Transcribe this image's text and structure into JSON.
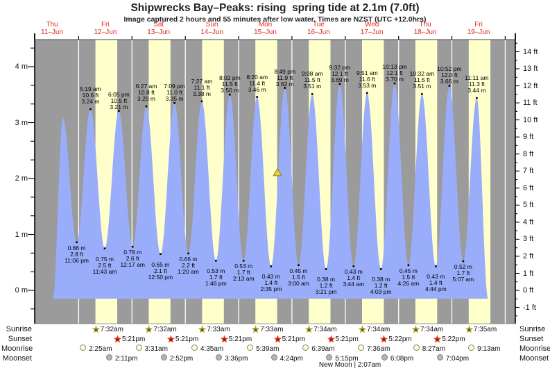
{
  "title": "Shipwrecks Bay–Peaks: rising  spring tide at 2.1m (7.0ft)",
  "subtitle": "Image captured 2 hours and 55 minutes after low water. Times are NZST (UTC +12.0hrs)",
  "day_labels": [
    {
      "name": "Thu",
      "date": "11–Jun"
    },
    {
      "name": "Fri",
      "date": "12–Jun"
    },
    {
      "name": "Sat",
      "date": "13–Jun"
    },
    {
      "name": "Sun",
      "date": "14–Jun"
    },
    {
      "name": "Mon",
      "date": "15–Jun"
    },
    {
      "name": "Tue",
      "date": "16–Jun"
    },
    {
      "name": "Wed",
      "date": "17–Jun"
    },
    {
      "name": "Thu",
      "date": "18–Jun"
    },
    {
      "name": "Fri",
      "date": "19–Jun"
    }
  ],
  "left_axis_labels": [
    "4 m",
    "3 m",
    "2 m",
    "1 m",
    "0 m"
  ],
  "right_axis_labels": [
    "14 ft",
    "13 ft",
    "12 ft",
    "11 ft",
    "10 ft",
    "9 ft",
    "8 ft",
    "7 ft",
    "6 ft",
    "5 ft",
    "4 ft",
    "3 ft",
    "2 ft",
    "1 ft",
    "0 ft",
    "-1 ft"
  ],
  "chart_data": {
    "type": "area",
    "x_axis": "time, Thu 11-Jun through Fri 19-Jun (NZST)",
    "y_left_unit": "m",
    "y_left_ticks": [
      0,
      1,
      2,
      3,
      4
    ],
    "y_right_unit": "ft",
    "y_right_ticks": [
      -1,
      0,
      1,
      2,
      3,
      4,
      5,
      6,
      7,
      8,
      9,
      10,
      11,
      12,
      13,
      14
    ],
    "shading": "yellow bands = daylight between sunrise and sunset, gray = night",
    "high_tides": [
      {
        "day": 1,
        "time": "5:19 am",
        "ft": 10.6,
        "m": 3.24
      },
      {
        "day": 1,
        "time": "6:05 pm",
        "ft": 10.5,
        "m": 3.21
      },
      {
        "day": 2,
        "time": "6:27 am",
        "ft": 10.8,
        "m": 3.29
      },
      {
        "day": 2,
        "time": "7:09 pm",
        "ft": 11.0,
        "m": 3.35
      },
      {
        "day": 3,
        "time": "7:27 am",
        "ft": 11.1,
        "m": 3.38
      },
      {
        "day": 3,
        "time": "8:02 pm",
        "ft": 11.5,
        "m": 3.5
      },
      {
        "day": 4,
        "time": "8:20 am",
        "ft": 11.4,
        "m": 3.46
      },
      {
        "day": 4,
        "time": "8:49 pm",
        "ft": 11.9,
        "m": 3.62
      },
      {
        "day": 5,
        "time": "9:08 am",
        "ft": 11.5,
        "m": 3.51
      },
      {
        "day": 5,
        "time": "9:32 pm",
        "ft": 12.1,
        "m": 3.69
      },
      {
        "day": 6,
        "time": "9:51 am",
        "ft": 11.6,
        "m": 3.53
      },
      {
        "day": 6,
        "time": "10:13 pm",
        "ft": 12.1,
        "m": 3.7
      },
      {
        "day": 7,
        "time": "10:32 am",
        "ft": 11.5,
        "m": 3.51
      },
      {
        "day": 7,
        "time": "10:52 pm",
        "ft": 12.0,
        "m": 3.66
      },
      {
        "day": 8,
        "time": "11:11 am",
        "ft": 11.3,
        "m": 3.44
      }
    ],
    "low_tides": [
      {
        "day": 0,
        "time": "11:06 pm",
        "ft": 2.8,
        "m": 0.86
      },
      {
        "day": 1,
        "time": "11:43 am",
        "ft": 2.5,
        "m": 0.75
      },
      {
        "day": 2,
        "time": "12:17 am",
        "ft": 2.6,
        "m": 0.78
      },
      {
        "day": 2,
        "time": "12:50 pm",
        "ft": 2.1,
        "m": 0.65
      },
      {
        "day": 3,
        "time": "1:20 am",
        "ft": 2.2,
        "m": 0.66
      },
      {
        "day": 3,
        "time": "1:46 pm",
        "ft": 1.7,
        "m": 0.53
      },
      {
        "day": 4,
        "time": "2:13 am",
        "ft": 1.7,
        "m": 0.53
      },
      {
        "day": 4,
        "time": "2:35 pm",
        "ft": 1.4,
        "m": 0.43
      },
      {
        "day": 5,
        "time": "3:00 am",
        "ft": 1.5,
        "m": 0.45
      },
      {
        "day": 5,
        "time": "3:21 pm",
        "ft": 1.2,
        "m": 0.38
      },
      {
        "day": 6,
        "time": "3:44 am",
        "ft": 1.4,
        "m": 0.43
      },
      {
        "day": 6,
        "time": "4:03 pm",
        "ft": 1.2,
        "m": 0.38
      },
      {
        "day": 7,
        "time": "4:26 am",
        "ft": 1.5,
        "m": 0.45
      },
      {
        "day": 7,
        "time": "4:44 pm",
        "ft": 1.4,
        "m": 0.43
      },
      {
        "day": 8,
        "time": "5:07 am",
        "ft": 1.7,
        "m": 0.52
      }
    ],
    "unlabeled_first_peak": {
      "t_hours": 16.9,
      "m": 3.08
    },
    "current_tide_marker": {
      "m": 2.1,
      "t_hours": 113.5
    }
  },
  "astro": {
    "row_labels": [
      "Sunrise",
      "Sunset",
      "Moonrise",
      "Moonset"
    ],
    "sunrise": [
      {
        "day": 1,
        "time": "7:32am"
      },
      {
        "day": 2,
        "time": "7:32am"
      },
      {
        "day": 3,
        "time": "7:33am"
      },
      {
        "day": 4,
        "time": "7:33am"
      },
      {
        "day": 5,
        "time": "7:34am"
      },
      {
        "day": 6,
        "time": "7:34am"
      },
      {
        "day": 7,
        "time": "7:34am"
      },
      {
        "day": 8,
        "time": "7:35am"
      }
    ],
    "sunset": [
      {
        "day": 1,
        "time": "5:21pm"
      },
      {
        "day": 2,
        "time": "5:21pm"
      },
      {
        "day": 3,
        "time": "5:21pm"
      },
      {
        "day": 4,
        "time": "5:21pm"
      },
      {
        "day": 5,
        "time": "5:21pm"
      },
      {
        "day": 6,
        "time": "5:22pm"
      },
      {
        "day": 7,
        "time": "5:22pm"
      }
    ],
    "moonrise": [
      {
        "day": 1,
        "time": "2:25am"
      },
      {
        "day": 2,
        "time": "3:31am"
      },
      {
        "day": 3,
        "time": "4:35am"
      },
      {
        "day": 4,
        "time": "5:39am"
      },
      {
        "day": 5,
        "time": "6:39am"
      },
      {
        "day": 6,
        "time": "7:36am"
      },
      {
        "day": 7,
        "time": "8:27am"
      },
      {
        "day": 8,
        "time": "9:13am"
      }
    ],
    "moonset": [
      {
        "day": 1,
        "time": "2:11pm"
      },
      {
        "day": 2,
        "time": "2:52pm"
      },
      {
        "day": 3,
        "time": "3:36pm"
      },
      {
        "day": 4,
        "time": "4:24pm"
      },
      {
        "day": 5,
        "time": "5:15pm"
      },
      {
        "day": 6,
        "time": "6:08pm"
      },
      {
        "day": 7,
        "time": "7:04pm"
      }
    ],
    "new_moon": {
      "label": "New Moon | 2:07am",
      "day": 6,
      "time": "2:07am"
    }
  },
  "colors": {
    "band_night": "#9b9b9b",
    "band_day": "#ffffcc",
    "tide_fill": "#9aadfa",
    "day_label_red": "#e02a20",
    "sunrise_star": "#b0a41c",
    "sunrise_star_center": "#56500a",
    "sunset_star": "#d63a23",
    "sunset_star_center": "#8c1208",
    "moonrise_fill": "#ffffcc",
    "moonset_fill": "#b5b5b5",
    "marker_yellow": "#e6d23e"
  }
}
